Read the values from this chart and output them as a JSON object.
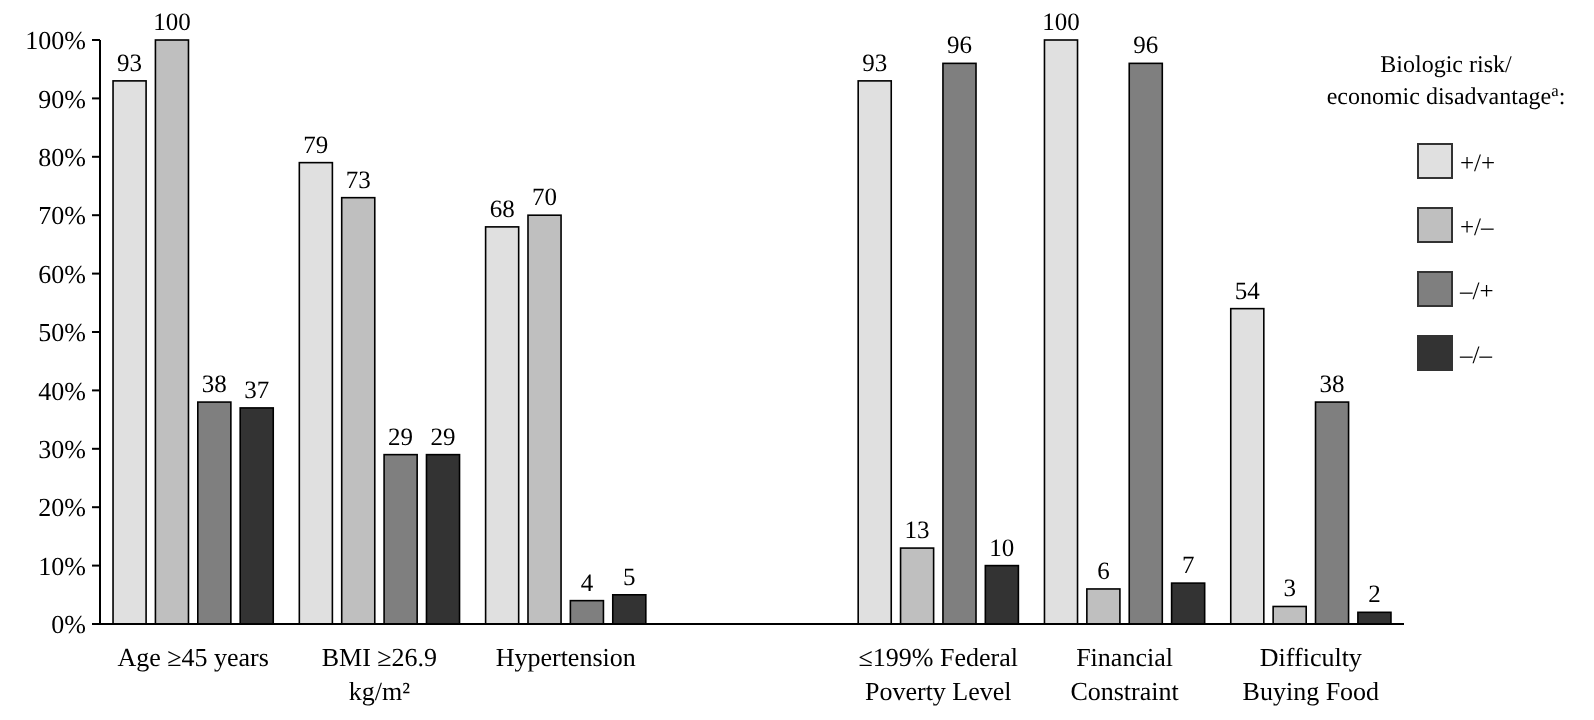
{
  "chart_data": {
    "type": "bar",
    "categories": [
      "Age ≥45 years",
      "BMI ≥26.9\nkg/m²",
      "Hypertension",
      null,
      "≤199% Federal\nPoverty Level",
      "Financial\nConstraint",
      "Difficulty\nBuying Food"
    ],
    "series": [
      {
        "name": "+/+",
        "color": "#e0e0e0",
        "values": [
          93,
          79,
          68,
          null,
          93,
          100,
          54
        ]
      },
      {
        "name": "+/–",
        "color": "#bfbfbf",
        "values": [
          100,
          73,
          70,
          null,
          13,
          6,
          3
        ]
      },
      {
        "name": "–/+",
        "color": "#7f7f7f",
        "values": [
          38,
          29,
          4,
          null,
          96,
          96,
          38
        ]
      },
      {
        "name": "–/–",
        "color": "#333333",
        "values": [
          37,
          29,
          5,
          null,
          10,
          7,
          2
        ]
      }
    ],
    "legend_title": "Biologic risk/\neconomic disadvantage$^{a}$:",
    "legend": "right",
    "data_labels": true,
    "grid": false,
    "ylim": [
      0,
      100
    ],
    "yticks": [
      {
        "value": 0,
        "label": "0%"
      },
      {
        "value": 10,
        "label": "10%"
      },
      {
        "value": 20,
        "label": "20%"
      },
      {
        "value": 30,
        "label": "30%"
      },
      {
        "value": 40,
        "label": "40%"
      },
      {
        "value": 50,
        "label": "50%"
      },
      {
        "value": 60,
        "label": "60%"
      },
      {
        "value": 70,
        "label": "70%"
      },
      {
        "value": 80,
        "label": "80%"
      },
      {
        "value": 90,
        "label": "90%"
      },
      {
        "value": 100,
        "label": "100%"
      }
    ]
  }
}
